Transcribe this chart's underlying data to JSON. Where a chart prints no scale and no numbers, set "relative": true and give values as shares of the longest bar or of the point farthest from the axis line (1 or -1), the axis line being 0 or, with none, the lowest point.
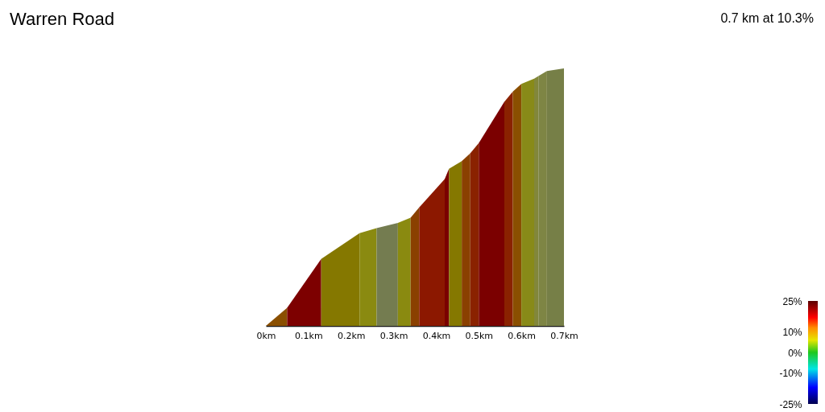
{
  "chart_data": {
    "type": "area",
    "title": "Warren Road",
    "annotations": [
      "0.7 km at 10.3%"
    ],
    "relative": true,
    "series": [
      {
        "color": "#8a4f00",
        "x": [
          0,
          0.05
        ],
        "values": [
          0,
          0.07
        ]
      },
      {
        "color": "#7d0000",
        "x": [
          0.05,
          0.13
        ],
        "values": [
          0.07,
          0.26
        ]
      },
      {
        "color": "#857800",
        "x": [
          0.13,
          0.22
        ],
        "values": [
          0.26,
          0.36
        ]
      },
      {
        "color": "#8a8a10",
        "x": [
          0.22,
          0.26
        ],
        "values": [
          0.36,
          0.38
        ]
      },
      {
        "color": "#747c50",
        "x": [
          0.26,
          0.31
        ],
        "values": [
          0.38,
          0.4
        ]
      },
      {
        "color": "#8a8a10",
        "x": [
          0.31,
          0.34
        ],
        "values": [
          0.4,
          0.42
        ]
      },
      {
        "color": "#8a4000",
        "x": [
          0.34,
          0.36
        ],
        "values": [
          0.42,
          0.46
        ]
      },
      {
        "color": "#8c1800",
        "x": [
          0.36,
          0.42
        ],
        "values": [
          0.46,
          0.57
        ]
      },
      {
        "color": "#7a0000",
        "x": [
          0.42,
          0.43
        ],
        "values": [
          0.57,
          0.61
        ]
      },
      {
        "color": "#857800",
        "x": [
          0.43,
          0.46
        ],
        "values": [
          0.61,
          0.64
        ]
      },
      {
        "color": "#8a4000",
        "x": [
          0.46,
          0.48
        ],
        "values": [
          0.64,
          0.67
        ]
      },
      {
        "color": "#8a2200",
        "x": [
          0.48,
          0.5
        ],
        "values": [
          0.67,
          0.71
        ]
      },
      {
        "color": "#7b0000",
        "x": [
          0.5,
          0.56
        ],
        "values": [
          0.71,
          0.87
        ]
      },
      {
        "color": "#8a2200",
        "x": [
          0.56,
          0.58
        ],
        "values": [
          0.87,
          0.91
        ]
      },
      {
        "color": "#8a4f00",
        "x": [
          0.58,
          0.6
        ],
        "values": [
          0.91,
          0.94
        ]
      },
      {
        "color": "#888a18",
        "x": [
          0.6,
          0.63
        ],
        "values": [
          0.94,
          0.96
        ]
      },
      {
        "color": "#82873a",
        "x": [
          0.63,
          0.64
        ],
        "values": [
          0.96,
          0.97
        ]
      },
      {
        "color": "#7e8544",
        "x": [
          0.64,
          0.66
        ],
        "values": [
          0.97,
          0.99
        ]
      },
      {
        "color": "#767f47",
        "x": [
          0.66,
          0.7
        ],
        "values": [
          0.99,
          1
        ]
      }
    ],
    "xlim": [
      0,
      0.7
    ],
    "xticks": [
      {
        "value": 0,
        "label": "0km"
      },
      {
        "value": 0.1,
        "label": "0.1km"
      },
      {
        "value": 0.2,
        "label": "0.2km"
      },
      {
        "value": 0.3,
        "label": "0.3km"
      },
      {
        "value": 0.4,
        "label": "0.4km"
      },
      {
        "value": 0.5,
        "label": "0.5km"
      },
      {
        "value": 0.6,
        "label": "0.6km"
      },
      {
        "value": 0.7,
        "label": "0.7km"
      }
    ],
    "clim": [
      -25,
      25
    ],
    "cticks": [
      {
        "value": 25,
        "label": "25%"
      },
      {
        "value": 10,
        "label": "10%"
      },
      {
        "value": 0,
        "label": "0%"
      },
      {
        "value": -10,
        "label": "-10%"
      },
      {
        "value": -25,
        "label": "-25%"
      }
    ]
  }
}
